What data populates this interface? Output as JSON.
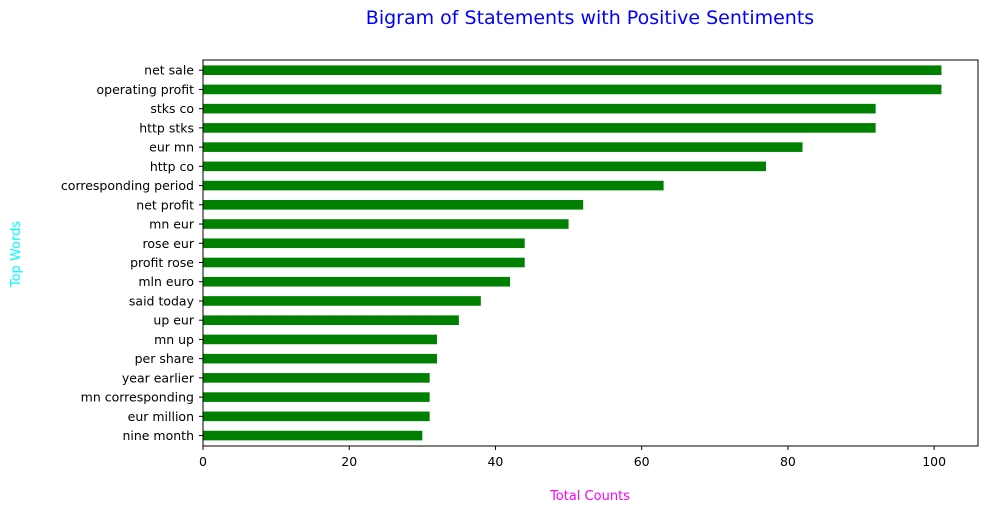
{
  "chart_data": {
    "type": "bar",
    "orientation": "horizontal",
    "title": "Bigram of Statements with Positive Sentiments",
    "xlabel": "Total Counts",
    "ylabel": "Top Words",
    "categories": [
      "net sale",
      "operating profit",
      "stks co",
      "http stks",
      "eur mn",
      "http co",
      "corresponding period",
      "net profit",
      "mn eur",
      "rose eur",
      "profit rose",
      "mln euro",
      "said today",
      "up eur",
      "mn up",
      "per share",
      "year earlier",
      "mn corresponding",
      "eur million",
      "nine month"
    ],
    "values": [
      101,
      101,
      92,
      92,
      82,
      77,
      63,
      52,
      50,
      44,
      44,
      42,
      38,
      35,
      32,
      32,
      31,
      31,
      31,
      30
    ],
    "xlim": [
      0,
      106
    ],
    "xticks": [
      0,
      20,
      40,
      60,
      80,
      100
    ],
    "grid": false,
    "legend": "none",
    "colors": {
      "bar": "#008000",
      "title": "#0000ff",
      "xlabel": "#ff00ff",
      "ylabel": "#00ffff",
      "axis": "#000000"
    }
  }
}
